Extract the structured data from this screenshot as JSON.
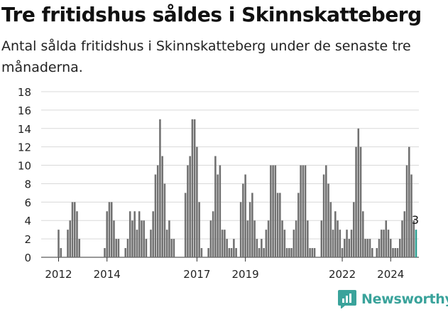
{
  "header": {
    "title": "Tre fritidshus såldes i Skinnskatteberg",
    "subtitle": "Antal sålda fritidshus i Skinnskatteberg under de senaste tre månaderna."
  },
  "brand": {
    "name": "Newsworthy",
    "icon": "newsworthy-logo-icon",
    "color": "#3aa39b"
  },
  "colors": {
    "bar": "#707070",
    "highlight": "#2a9d8f",
    "grid": "#d9d9d9"
  },
  "chart_data": {
    "type": "bar",
    "ylim": [
      0,
      18
    ],
    "yticks": [
      0,
      2,
      4,
      6,
      8,
      10,
      12,
      14,
      16,
      18
    ],
    "xticks": [
      "2012",
      "2014",
      "2017",
      "2019",
      "2022",
      "2024"
    ],
    "annotation": "3",
    "series": [
      {
        "values": [
          0,
          0,
          0,
          0,
          0,
          0,
          3,
          1,
          0,
          0,
          3,
          4,
          6,
          6,
          5,
          2,
          0,
          0,
          0,
          0,
          0,
          0,
          0,
          0,
          0,
          0,
          1,
          5,
          6,
          6,
          4,
          2,
          2,
          0,
          0,
          1,
          2,
          5,
          4,
          5,
          3,
          5,
          4,
          4,
          2,
          0,
          3,
          5,
          9,
          10,
          15,
          11,
          8,
          3,
          4,
          2,
          2,
          0,
          0,
          0,
          0,
          7,
          10,
          11,
          15,
          15,
          12,
          6,
          1,
          0,
          0,
          1,
          4,
          5,
          11,
          9,
          10,
          3,
          3,
          2,
          1,
          1,
          2,
          1,
          0,
          6,
          8,
          9,
          4,
          6,
          7,
          4,
          2,
          1,
          2,
          1,
          3,
          4,
          10,
          10,
          10,
          7,
          7,
          4,
          3,
          1,
          1,
          1,
          3,
          4,
          7,
          10,
          10,
          10,
          4,
          1,
          1,
          1,
          0,
          0,
          4,
          9,
          10,
          8,
          6,
          3,
          5,
          4,
          3,
          1,
          2,
          3,
          2,
          3,
          6,
          12,
          14,
          12,
          5,
          2,
          2,
          2,
          1,
          0,
          1,
          2,
          3,
          3,
          4,
          3,
          2,
          1,
          1,
          1,
          2,
          4,
          5,
          10,
          12,
          9,
          4,
          3
        ]
      }
    ]
  }
}
